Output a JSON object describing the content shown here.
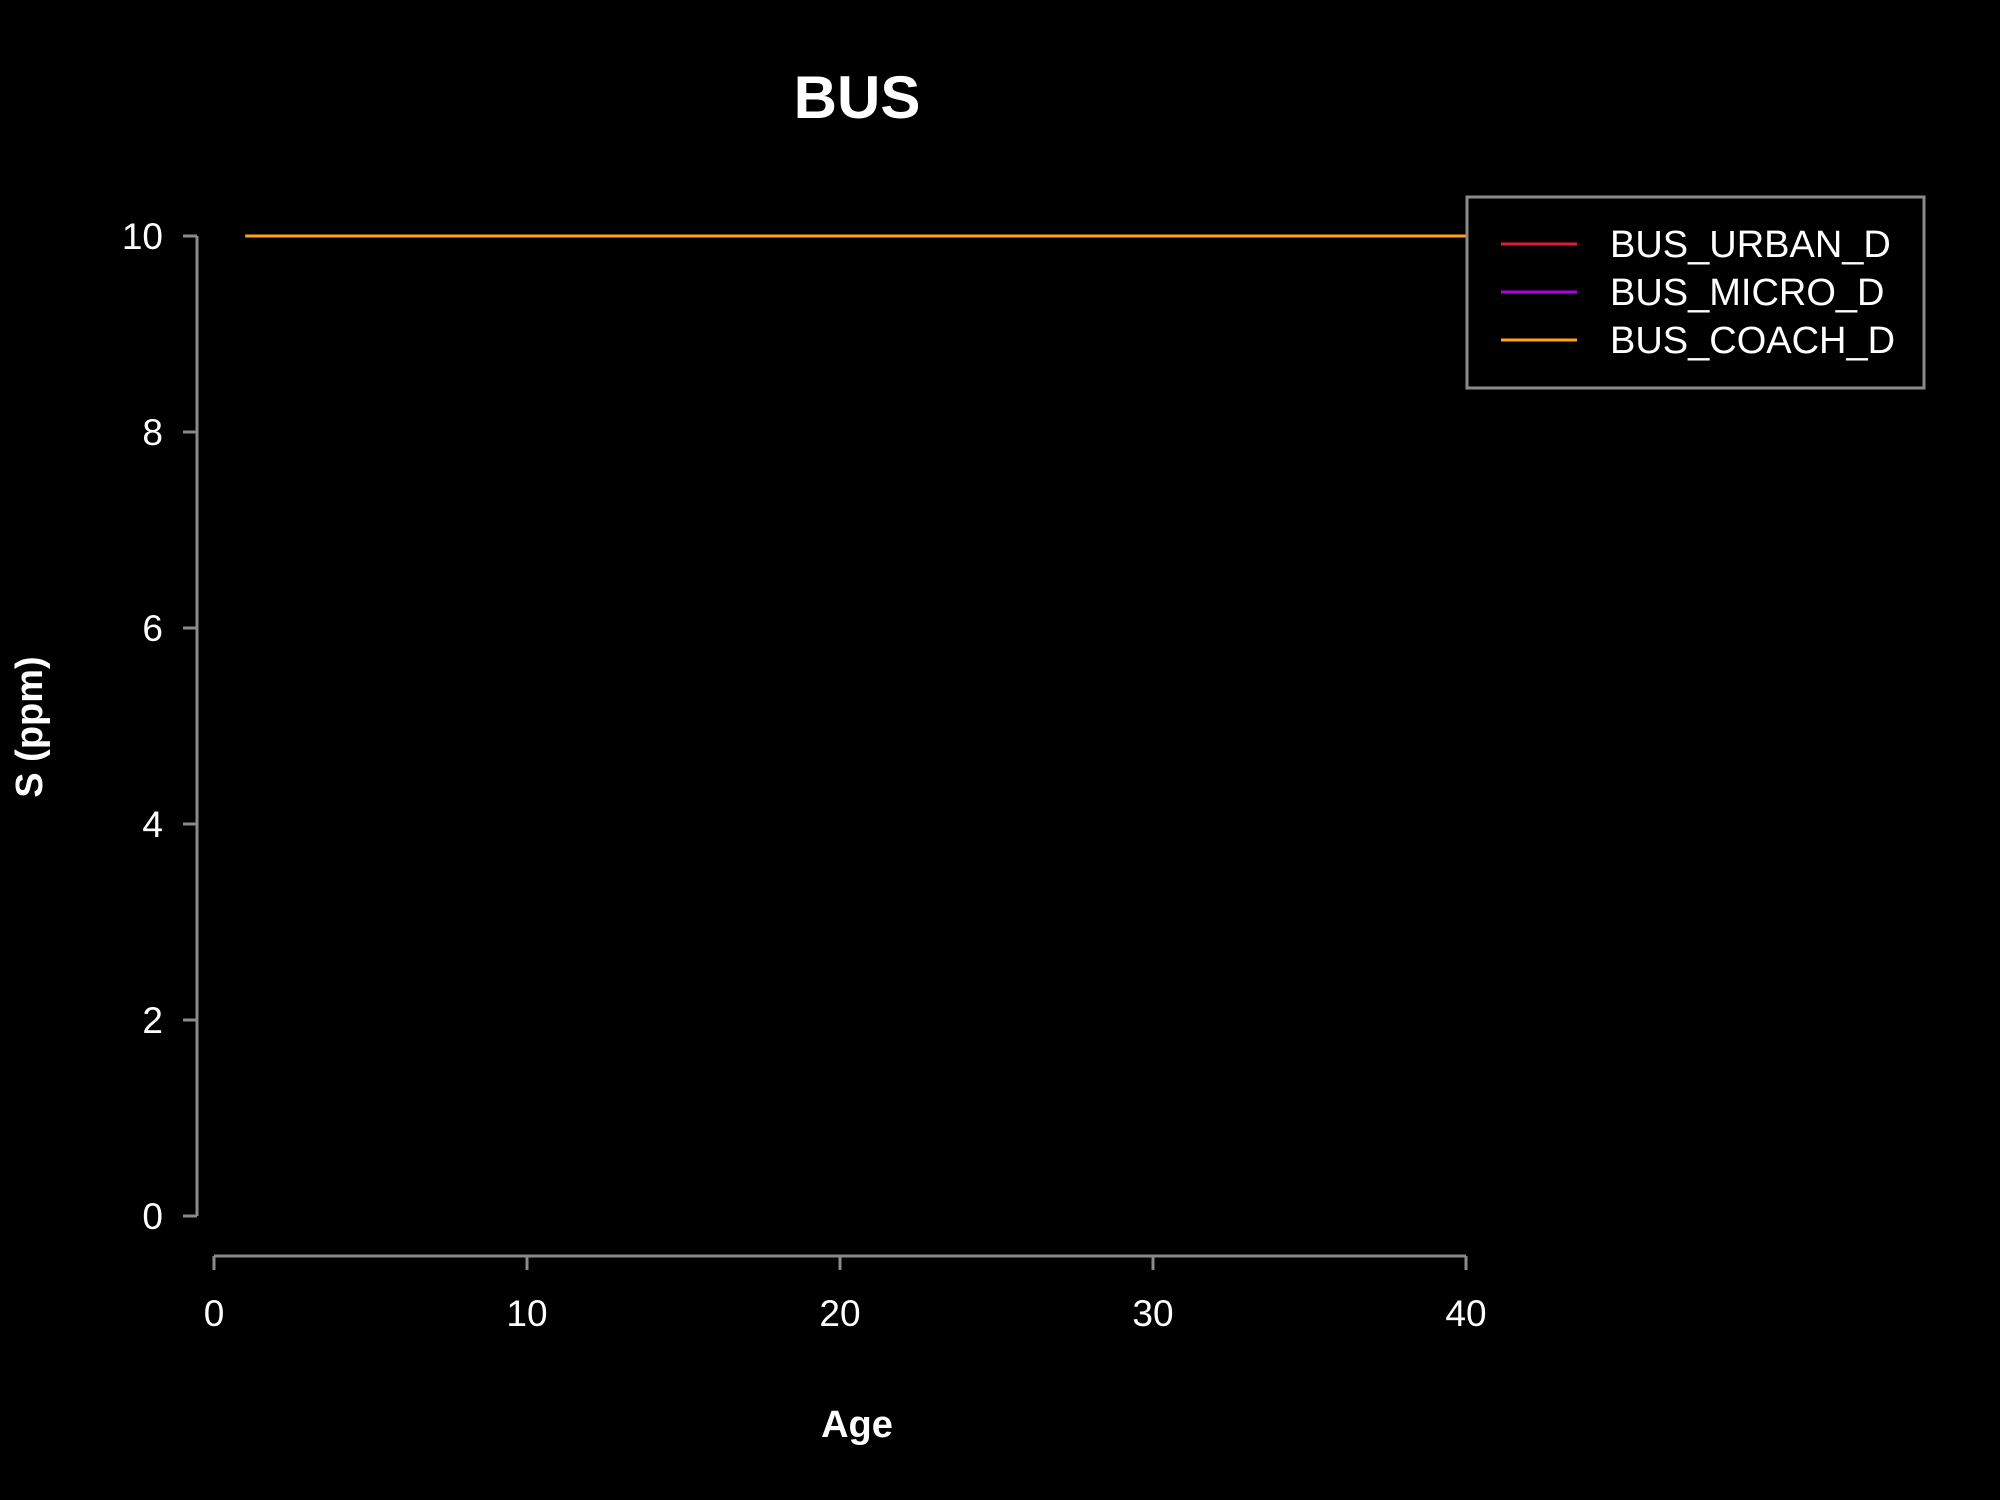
{
  "chart_data": {
    "type": "line",
    "title": "BUS",
    "xlabel": "Age",
    "ylabel": "S (ppm)",
    "xlim": [
      0,
      40
    ],
    "ylim": [
      0,
      10
    ],
    "x_ticks": [
      0,
      10,
      20,
      30,
      40
    ],
    "y_ticks": [
      0,
      2,
      4,
      6,
      8,
      10
    ],
    "grid": false,
    "legend_position": "top-right",
    "background": "#000000",
    "series": [
      {
        "name": "BUS_URBAN_D",
        "color": "#e8173c",
        "x": [
          1,
          40
        ],
        "y": [
          10,
          10
        ]
      },
      {
        "name": "BUS_MICRO_D",
        "color": "#b000e0",
        "x": [
          1,
          40
        ],
        "y": [
          10,
          10
        ]
      },
      {
        "name": "BUS_COACH_D",
        "color": "#ffa31a",
        "x": [
          1,
          40
        ],
        "y": [
          10,
          10
        ]
      }
    ]
  }
}
